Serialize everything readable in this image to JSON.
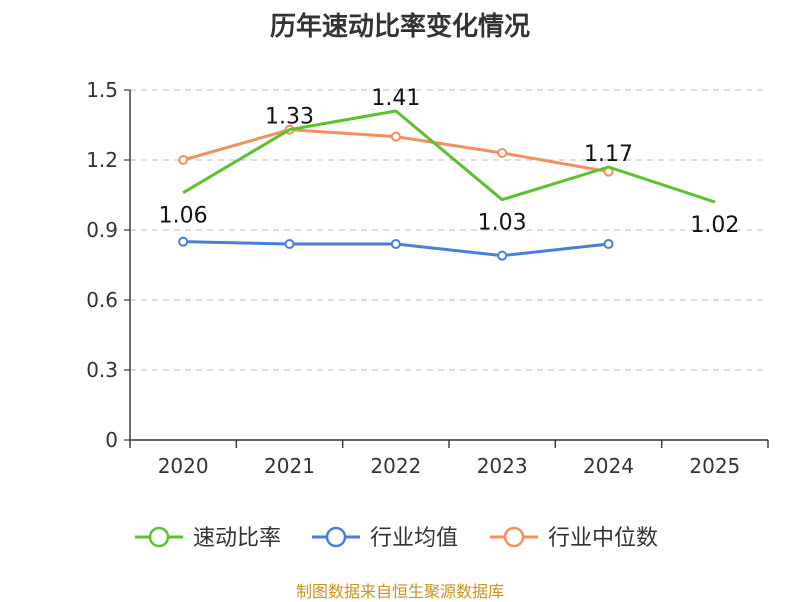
{
  "chart_data": {
    "type": "line",
    "title": "历年速动比率变化情况",
    "categories": [
      "2020",
      "2021",
      "2022",
      "2023",
      "2024",
      "2025"
    ],
    "ylim": [
      0,
      1.5
    ],
    "yticks": [
      0,
      0.3,
      0.6,
      0.9,
      1.2,
      1.5
    ],
    "ytick_labels": [
      "0",
      "0.3",
      "0.6",
      "0.9",
      "1.2",
      "1.5"
    ],
    "grid": true,
    "legend_position": "bottom",
    "series": [
      {
        "name": "速动比率",
        "color": "#5cc12f",
        "values": [
          1.06,
          1.33,
          1.41,
          1.03,
          1.17,
          1.02
        ],
        "labels": [
          "1.06",
          "1.33",
          "1.41",
          "1.03",
          "1.17",
          "1.02"
        ],
        "markers": [
          false,
          false,
          false,
          false,
          false,
          false
        ]
      },
      {
        "name": "行业均值",
        "color": "#4a7fd8",
        "values": [
          0.85,
          0.84,
          0.84,
          0.79,
          0.84,
          null
        ],
        "markers": [
          true,
          true,
          true,
          true,
          true,
          false
        ]
      },
      {
        "name": "行业中位数",
        "color": "#f5905e",
        "values": [
          1.2,
          1.33,
          1.3,
          1.23,
          1.15,
          null
        ],
        "markers": [
          true,
          true,
          true,
          true,
          true,
          false
        ]
      }
    ]
  },
  "footer": {
    "source": "制图数据来自恒生聚源数据库"
  }
}
